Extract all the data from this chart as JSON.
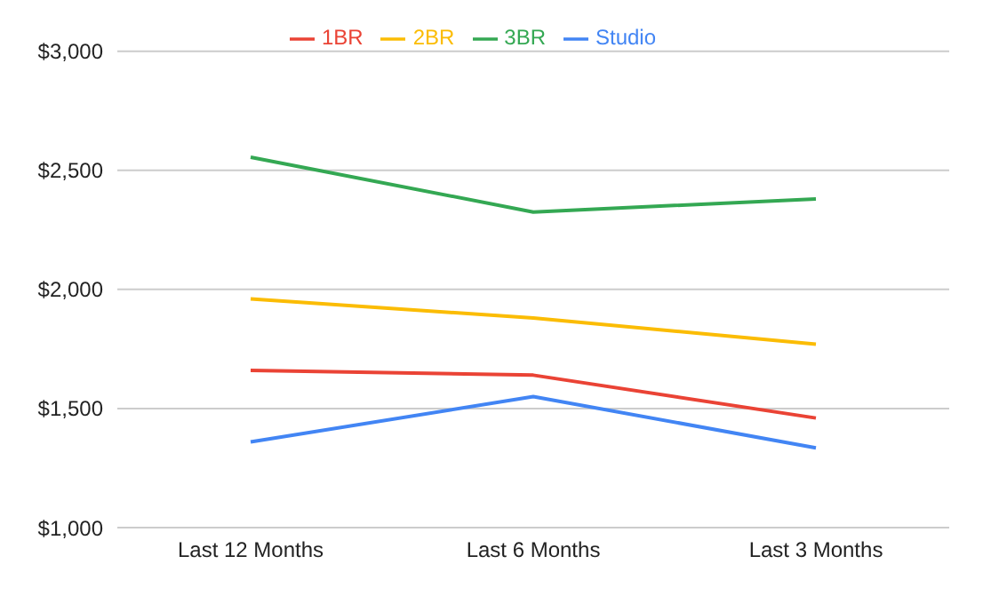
{
  "chart_data": {
    "type": "line",
    "categories": [
      "Last 12 Months",
      "Last 6 Months",
      "Last 3 Months"
    ],
    "series": [
      {
        "name": "Studio",
        "color": "#4285f4",
        "values": [
          1360,
          1550,
          1335
        ]
      },
      {
        "name": "1BR",
        "color": "#ea4335",
        "values": [
          1660,
          1640,
          1460
        ]
      },
      {
        "name": "2BR",
        "color": "#fbbc04",
        "values": [
          1960,
          1880,
          1770
        ]
      },
      {
        "name": "3BR",
        "color": "#34a853",
        "values": [
          2555,
          2325,
          2380
        ]
      }
    ],
    "ylim": [
      1000,
      3000
    ],
    "yticks": [
      {
        "value": 1000,
        "label": "$1,000"
      },
      {
        "value": 1500,
        "label": "$1,500"
      },
      {
        "value": 2000,
        "label": "$2,000"
      },
      {
        "value": 2500,
        "label": "$2,500"
      },
      {
        "value": 3000,
        "label": "$3,000"
      }
    ],
    "grid": "y",
    "legend": "top",
    "marker": "none",
    "line_style": "solid"
  }
}
